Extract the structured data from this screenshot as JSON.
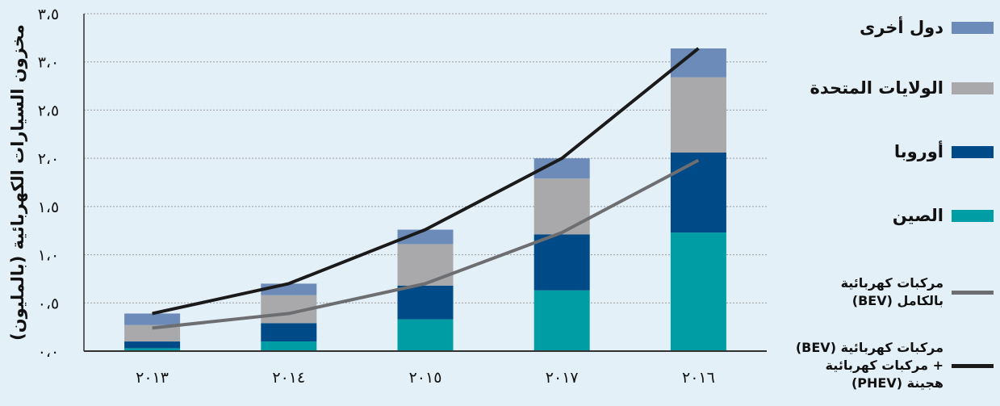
{
  "chart_data": {
    "type": "bar",
    "stacked": true,
    "categories": [
      "٢٠١٣",
      "٢٠١٤",
      "٢٠١٥",
      "٢٠١٧",
      "٢٠١٦"
    ],
    "ylabel": "مخزون السيارات الكهربائية (بالمليون)",
    "ylim": [
      0,
      3.5
    ],
    "yticks": [
      "٠،٠",
      "٠،٥",
      "١،٠",
      "١،٥",
      "٢،٠",
      "٢،٥",
      "٣،٠",
      "٣،٥"
    ],
    "grid": "horizontal",
    "legend_position": "right",
    "series": [
      {
        "name": "الصين",
        "color": "#009ea4",
        "values": [
          0.03,
          0.1,
          0.33,
          0.63,
          1.23
        ]
      },
      {
        "name": "أوروبا",
        "color": "#004b87",
        "values": [
          0.07,
          0.19,
          0.35,
          0.58,
          0.83
        ]
      },
      {
        "name": "الولايات المتحدة",
        "color": "#a9a9ab",
        "values": [
          0.17,
          0.29,
          0.43,
          0.58,
          0.78
        ]
      },
      {
        "name": "دول أخرى",
        "color": "#6d8bb8",
        "values": [
          0.12,
          0.12,
          0.15,
          0.21,
          0.3
        ]
      }
    ],
    "lines": [
      {
        "name": "مركبات كهربائية بالكامل (BEV)",
        "color": "#6d6e71",
        "values": [
          0.24,
          0.39,
          0.7,
          1.23,
          1.98
        ]
      },
      {
        "name": "مركبات كهربائية (BEV) + مركبات كهربائية هجينة (PHEV)",
        "color": "#1a1a1a",
        "values": [
          0.39,
          0.7,
          1.26,
          2.0,
          3.14
        ]
      }
    ]
  },
  "legend": {
    "others": "دول أخرى",
    "usa": "الولايات المتحدة",
    "europe": "أوروبا",
    "china": "الصين",
    "bev_line1": "مركبات كهربائية",
    "bev_line2": "بالكامل (BEV)",
    "phev_line1": "مركبات كهربائية (BEV)",
    "phev_line2": "+ مركبات كهربائية",
    "phev_line3": "هجينة (PHEV)"
  }
}
